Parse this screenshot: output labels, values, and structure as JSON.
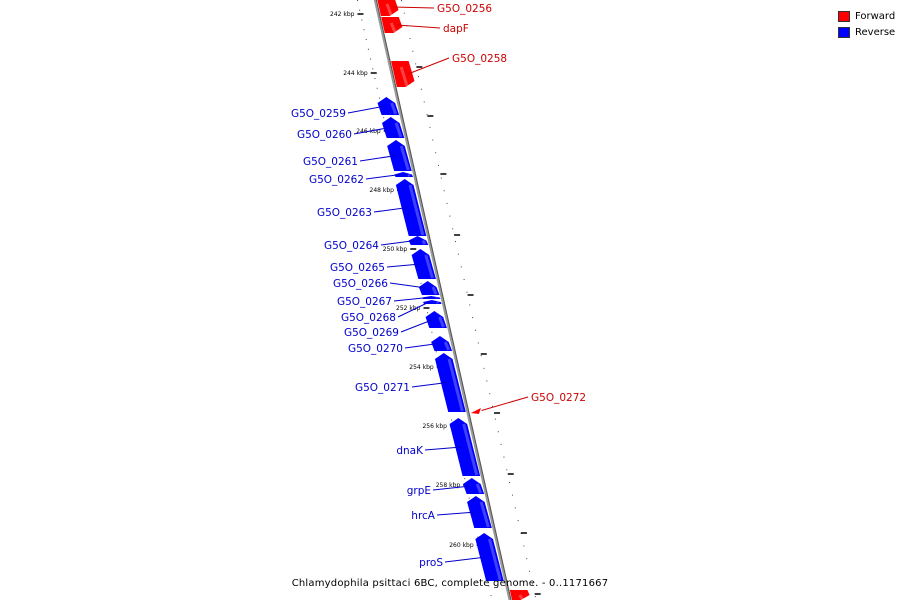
{
  "legend": [
    {
      "label": "Forward",
      "color": "#ff0000"
    },
    {
      "label": "Reverse",
      "color": "#0000ff"
    }
  ],
  "caption": "Chlamydophila psittaci 6BC, complete genome. - 0..1171667",
  "colors": {
    "forward": "#ff0000",
    "reverse": "#0000ff",
    "backbone": "#888888"
  },
  "scale_marks": [
    "242 kbp",
    "244 kbp",
    "246 kbp",
    "248 kbp",
    "250 kbp",
    "252 kbp",
    "254 kbp",
    "256 kbp",
    "258 kbp",
    "260 kbp"
  ],
  "genes": [
    {
      "name": "G5O_0256",
      "strand": "forward"
    },
    {
      "name": "dapF",
      "strand": "forward"
    },
    {
      "name": "G5O_0258",
      "strand": "forward"
    },
    {
      "name": "G5O_0259",
      "strand": "reverse"
    },
    {
      "name": "G5O_0260",
      "strand": "reverse"
    },
    {
      "name": "G5O_0261",
      "strand": "reverse"
    },
    {
      "name": "G5O_0262",
      "strand": "reverse"
    },
    {
      "name": "G5O_0263",
      "strand": "reverse"
    },
    {
      "name": "G5O_0264",
      "strand": "reverse"
    },
    {
      "name": "G5O_0265",
      "strand": "reverse"
    },
    {
      "name": "G5O_0266",
      "strand": "reverse"
    },
    {
      "name": "G5O_0267",
      "strand": "reverse"
    },
    {
      "name": "G5O_0268",
      "strand": "reverse"
    },
    {
      "name": "G5O_0269",
      "strand": "reverse"
    },
    {
      "name": "G5O_0270",
      "strand": "reverse"
    },
    {
      "name": "G5O_0271",
      "strand": "reverse"
    },
    {
      "name": "G5O_0272",
      "strand": "forward"
    },
    {
      "name": "dnaK",
      "strand": "reverse"
    },
    {
      "name": "grpE",
      "strand": "reverse"
    },
    {
      "name": "hrcA",
      "strand": "reverse"
    },
    {
      "name": "proS",
      "strand": "reverse"
    }
  ]
}
